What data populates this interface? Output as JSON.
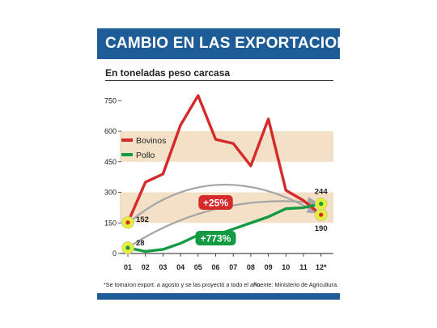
{
  "header": {
    "title": "CAMBIO EN LAS EXPORTACIONES",
    "subtitle": "En toneladas peso carcasa"
  },
  "footer": {
    "note": "*Se tomaron export. a agosto y se las proyectó a todo el año.",
    "source": "Fuente: Ministerio de Agricultura."
  },
  "colors": {
    "header_blue": "#1d5c97",
    "band": "#f3e0c6",
    "bovinos": "#d42a2a",
    "pollo": "#139a43",
    "highlight": "#e5ef3a",
    "arrow": "#a6a6a6"
  },
  "chart_data": {
    "type": "line",
    "categories": [
      "01",
      "02",
      "03",
      "04",
      "05",
      "06",
      "07",
      "08",
      "09",
      "10",
      "11",
      "12*"
    ],
    "ylim": [
      0,
      800
    ],
    "yticks": [
      0,
      150,
      300,
      450,
      600,
      750
    ],
    "grid": false,
    "legend_position": "left",
    "series": [
      {
        "name": "Bovinos",
        "color": "#d42a2a",
        "values": [
          152,
          350,
          390,
          630,
          775,
          560,
          540,
          430,
          660,
          310,
          260,
          190
        ]
      },
      {
        "name": "Pollo",
        "color": "#139a43",
        "values": [
          28,
          10,
          20,
          50,
          90,
          90,
          120,
          150,
          180,
          220,
          225,
          244
        ]
      }
    ],
    "point_labels": [
      {
        "series": "Bovinos",
        "category": "01",
        "text": "152"
      },
      {
        "series": "Bovinos",
        "category": "12*",
        "text": "190"
      },
      {
        "series": "Pollo",
        "category": "01",
        "text": "28"
      },
      {
        "series": "Pollo",
        "category": "12*",
        "text": "244"
      }
    ],
    "annotations": [
      {
        "series": "Bovinos",
        "text": "+25%"
      },
      {
        "series": "Pollo",
        "text": "+773%"
      }
    ]
  }
}
